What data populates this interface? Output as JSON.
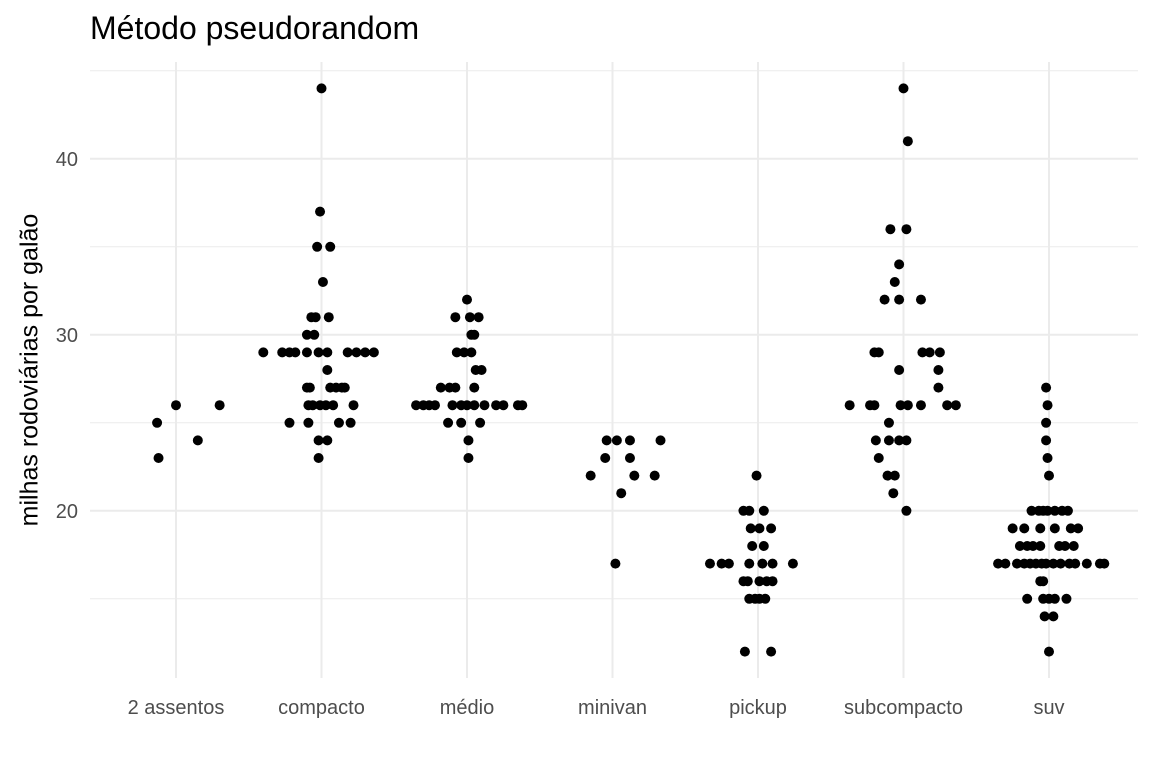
{
  "chart_data": {
    "type": "scatter",
    "title": "Método pseudorandom",
    "xlabel": "",
    "ylabel": "milhas rodoviárias por galão",
    "categories": [
      "2 assentos",
      "compacto",
      "médio",
      "minivan",
      "pickup",
      "subcompacto",
      "suv"
    ],
    "yticks": [
      20,
      30,
      40
    ],
    "ylim": [
      10.5,
      45.5
    ],
    "grid": true,
    "legend": "none",
    "point_color": "#000000",
    "grid_color": "#ebebeb",
    "points": [
      {
        "category": "2 assentos",
        "jitter": -0.13,
        "y": 25
      },
      {
        "category": "2 assentos",
        "jitter": -0.12,
        "y": 23
      },
      {
        "category": "2 assentos",
        "jitter": 0.0,
        "y": 26
      },
      {
        "category": "2 assentos",
        "jitter": 0.15,
        "y": 24
      },
      {
        "category": "2 assentos",
        "jitter": 0.3,
        "y": 26
      },
      {
        "category": "compacto",
        "jitter": -0.4,
        "y": 29
      },
      {
        "category": "compacto",
        "jitter": -0.27,
        "y": 29
      },
      {
        "category": "compacto",
        "jitter": -0.22,
        "y": 29
      },
      {
        "category": "compacto",
        "jitter": -0.18,
        "y": 29
      },
      {
        "category": "compacto",
        "jitter": -0.1,
        "y": 29
      },
      {
        "category": "compacto",
        "jitter": -0.02,
        "y": 29
      },
      {
        "category": "compacto",
        "jitter": 0.04,
        "y": 29
      },
      {
        "category": "compacto",
        "jitter": 0.18,
        "y": 29
      },
      {
        "category": "compacto",
        "jitter": 0.24,
        "y": 29
      },
      {
        "category": "compacto",
        "jitter": 0.3,
        "y": 29
      },
      {
        "category": "compacto",
        "jitter": 0.36,
        "y": 29
      },
      {
        "category": "compacto",
        "jitter": 0.0,
        "y": 44
      },
      {
        "category": "compacto",
        "jitter": -0.01,
        "y": 37
      },
      {
        "category": "compacto",
        "jitter": -0.03,
        "y": 35
      },
      {
        "category": "compacto",
        "jitter": 0.06,
        "y": 35
      },
      {
        "category": "compacto",
        "jitter": 0.01,
        "y": 33
      },
      {
        "category": "compacto",
        "jitter": -0.07,
        "y": 31
      },
      {
        "category": "compacto",
        "jitter": -0.04,
        "y": 31
      },
      {
        "category": "compacto",
        "jitter": 0.05,
        "y": 31
      },
      {
        "category": "compacto",
        "jitter": -0.1,
        "y": 30
      },
      {
        "category": "compacto",
        "jitter": -0.05,
        "y": 30
      },
      {
        "category": "compacto",
        "jitter": 0.04,
        "y": 28
      },
      {
        "category": "compacto",
        "jitter": -0.1,
        "y": 27
      },
      {
        "category": "compacto",
        "jitter": -0.08,
        "y": 27
      },
      {
        "category": "compacto",
        "jitter": 0.06,
        "y": 27
      },
      {
        "category": "compacto",
        "jitter": 0.1,
        "y": 27
      },
      {
        "category": "compacto",
        "jitter": 0.14,
        "y": 27
      },
      {
        "category": "compacto",
        "jitter": 0.16,
        "y": 27
      },
      {
        "category": "compacto",
        "jitter": -0.09,
        "y": 26
      },
      {
        "category": "compacto",
        "jitter": -0.06,
        "y": 26
      },
      {
        "category": "compacto",
        "jitter": -0.01,
        "y": 26
      },
      {
        "category": "compacto",
        "jitter": 0.03,
        "y": 26
      },
      {
        "category": "compacto",
        "jitter": 0.08,
        "y": 26
      },
      {
        "category": "compacto",
        "jitter": 0.22,
        "y": 26
      },
      {
        "category": "compacto",
        "jitter": -0.22,
        "y": 25
      },
      {
        "category": "compacto",
        "jitter": -0.09,
        "y": 25
      },
      {
        "category": "compacto",
        "jitter": 0.12,
        "y": 25
      },
      {
        "category": "compacto",
        "jitter": 0.2,
        "y": 25
      },
      {
        "category": "compacto",
        "jitter": -0.02,
        "y": 24
      },
      {
        "category": "compacto",
        "jitter": 0.04,
        "y": 24
      },
      {
        "category": "compacto",
        "jitter": -0.02,
        "y": 23
      },
      {
        "category": "médio",
        "jitter": -0.35,
        "y": 26
      },
      {
        "category": "médio",
        "jitter": -0.3,
        "y": 26
      },
      {
        "category": "médio",
        "jitter": -0.26,
        "y": 26
      },
      {
        "category": "médio",
        "jitter": -0.22,
        "y": 26
      },
      {
        "category": "médio",
        "jitter": -0.1,
        "y": 26
      },
      {
        "category": "médio",
        "jitter": -0.04,
        "y": 26
      },
      {
        "category": "médio",
        "jitter": 0.0,
        "y": 26
      },
      {
        "category": "médio",
        "jitter": 0.05,
        "y": 26
      },
      {
        "category": "médio",
        "jitter": 0.12,
        "y": 26
      },
      {
        "category": "médio",
        "jitter": 0.2,
        "y": 26
      },
      {
        "category": "médio",
        "jitter": 0.25,
        "y": 26
      },
      {
        "category": "médio",
        "jitter": 0.35,
        "y": 26
      },
      {
        "category": "médio",
        "jitter": 0.38,
        "y": 26
      },
      {
        "category": "médio",
        "jitter": 0.0,
        "y": 32
      },
      {
        "category": "médio",
        "jitter": -0.08,
        "y": 31
      },
      {
        "category": "médio",
        "jitter": 0.02,
        "y": 31
      },
      {
        "category": "médio",
        "jitter": 0.08,
        "y": 31
      },
      {
        "category": "médio",
        "jitter": 0.03,
        "y": 30
      },
      {
        "category": "médio",
        "jitter": 0.05,
        "y": 30
      },
      {
        "category": "médio",
        "jitter": -0.07,
        "y": 29
      },
      {
        "category": "médio",
        "jitter": -0.02,
        "y": 29
      },
      {
        "category": "médio",
        "jitter": 0.03,
        "y": 29
      },
      {
        "category": "médio",
        "jitter": 0.06,
        "y": 28
      },
      {
        "category": "médio",
        "jitter": 0.1,
        "y": 28
      },
      {
        "category": "médio",
        "jitter": -0.18,
        "y": 27
      },
      {
        "category": "médio",
        "jitter": -0.12,
        "y": 27
      },
      {
        "category": "médio",
        "jitter": -0.08,
        "y": 27
      },
      {
        "category": "médio",
        "jitter": 0.05,
        "y": 27
      },
      {
        "category": "médio",
        "jitter": -0.13,
        "y": 25
      },
      {
        "category": "médio",
        "jitter": -0.04,
        "y": 25
      },
      {
        "category": "médio",
        "jitter": 0.09,
        "y": 25
      },
      {
        "category": "médio",
        "jitter": 0.01,
        "y": 24
      },
      {
        "category": "médio",
        "jitter": 0.01,
        "y": 23
      },
      {
        "category": "minivan",
        "jitter": -0.15,
        "y": 22
      },
      {
        "category": "minivan",
        "jitter": -0.05,
        "y": 23
      },
      {
        "category": "minivan",
        "jitter": -0.04,
        "y": 24
      },
      {
        "category": "minivan",
        "jitter": 0.03,
        "y": 24
      },
      {
        "category": "minivan",
        "jitter": 0.12,
        "y": 24
      },
      {
        "category": "minivan",
        "jitter": 0.33,
        "y": 24
      },
      {
        "category": "minivan",
        "jitter": 0.12,
        "y": 23
      },
      {
        "category": "minivan",
        "jitter": 0.15,
        "y": 22
      },
      {
        "category": "minivan",
        "jitter": 0.29,
        "y": 22
      },
      {
        "category": "minivan",
        "jitter": 0.06,
        "y": 21
      },
      {
        "category": "minivan",
        "jitter": 0.02,
        "y": 17
      },
      {
        "category": "pickup",
        "jitter": -0.33,
        "y": 17
      },
      {
        "category": "pickup",
        "jitter": -0.25,
        "y": 17
      },
      {
        "category": "pickup",
        "jitter": -0.2,
        "y": 17
      },
      {
        "category": "pickup",
        "jitter": -0.06,
        "y": 17
      },
      {
        "category": "pickup",
        "jitter": 0.03,
        "y": 17
      },
      {
        "category": "pickup",
        "jitter": 0.1,
        "y": 17
      },
      {
        "category": "pickup",
        "jitter": 0.24,
        "y": 17
      },
      {
        "category": "pickup",
        "jitter": -0.1,
        "y": 20
      },
      {
        "category": "pickup",
        "jitter": -0.06,
        "y": 20
      },
      {
        "category": "pickup",
        "jitter": 0.04,
        "y": 20
      },
      {
        "category": "pickup",
        "jitter": -0.05,
        "y": 19
      },
      {
        "category": "pickup",
        "jitter": 0.01,
        "y": 19
      },
      {
        "category": "pickup",
        "jitter": 0.09,
        "y": 19
      },
      {
        "category": "pickup",
        "jitter": -0.04,
        "y": 18
      },
      {
        "category": "pickup",
        "jitter": 0.04,
        "y": 18
      },
      {
        "category": "pickup",
        "jitter": -0.1,
        "y": 16
      },
      {
        "category": "pickup",
        "jitter": -0.07,
        "y": 16
      },
      {
        "category": "pickup",
        "jitter": 0.01,
        "y": 16
      },
      {
        "category": "pickup",
        "jitter": 0.06,
        "y": 16
      },
      {
        "category": "pickup",
        "jitter": 0.1,
        "y": 16
      },
      {
        "category": "pickup",
        "jitter": -0.06,
        "y": 15
      },
      {
        "category": "pickup",
        "jitter": -0.02,
        "y": 15
      },
      {
        "category": "pickup",
        "jitter": 0.01,
        "y": 15
      },
      {
        "category": "pickup",
        "jitter": 0.05,
        "y": 15
      },
      {
        "category": "pickup",
        "jitter": -0.01,
        "y": 22
      },
      {
        "category": "pickup",
        "jitter": -0.09,
        "y": 12
      },
      {
        "category": "pickup",
        "jitter": 0.09,
        "y": 12
      },
      {
        "category": "subcompacto",
        "jitter": 0.0,
        "y": 44
      },
      {
        "category": "subcompacto",
        "jitter": 0.03,
        "y": 41
      },
      {
        "category": "subcompacto",
        "jitter": -0.09,
        "y": 36
      },
      {
        "category": "subcompacto",
        "jitter": 0.02,
        "y": 36
      },
      {
        "category": "subcompacto",
        "jitter": -0.03,
        "y": 34
      },
      {
        "category": "subcompacto",
        "jitter": -0.06,
        "y": 33
      },
      {
        "category": "subcompacto",
        "jitter": -0.13,
        "y": 32
      },
      {
        "category": "subcompacto",
        "jitter": -0.03,
        "y": 32
      },
      {
        "category": "subcompacto",
        "jitter": 0.12,
        "y": 32
      },
      {
        "category": "subcompacto",
        "jitter": -0.2,
        "y": 29
      },
      {
        "category": "subcompacto",
        "jitter": -0.17,
        "y": 29
      },
      {
        "category": "subcompacto",
        "jitter": 0.13,
        "y": 29
      },
      {
        "category": "subcompacto",
        "jitter": 0.18,
        "y": 29
      },
      {
        "category": "subcompacto",
        "jitter": 0.25,
        "y": 29
      },
      {
        "category": "subcompacto",
        "jitter": -0.03,
        "y": 28
      },
      {
        "category": "subcompacto",
        "jitter": 0.24,
        "y": 28
      },
      {
        "category": "subcompacto",
        "jitter": 0.24,
        "y": 27
      },
      {
        "category": "subcompacto",
        "jitter": -0.37,
        "y": 26
      },
      {
        "category": "subcompacto",
        "jitter": -0.23,
        "y": 26
      },
      {
        "category": "subcompacto",
        "jitter": -0.2,
        "y": 26
      },
      {
        "category": "subcompacto",
        "jitter": -0.02,
        "y": 26
      },
      {
        "category": "subcompacto",
        "jitter": 0.03,
        "y": 26
      },
      {
        "category": "subcompacto",
        "jitter": 0.12,
        "y": 26
      },
      {
        "category": "subcompacto",
        "jitter": 0.3,
        "y": 26
      },
      {
        "category": "subcompacto",
        "jitter": 0.36,
        "y": 26
      },
      {
        "category": "subcompacto",
        "jitter": -0.1,
        "y": 25
      },
      {
        "category": "subcompacto",
        "jitter": -0.19,
        "y": 24
      },
      {
        "category": "subcompacto",
        "jitter": -0.1,
        "y": 24
      },
      {
        "category": "subcompacto",
        "jitter": -0.03,
        "y": 24
      },
      {
        "category": "subcompacto",
        "jitter": 0.02,
        "y": 24
      },
      {
        "category": "subcompacto",
        "jitter": -0.17,
        "y": 23
      },
      {
        "category": "subcompacto",
        "jitter": -0.11,
        "y": 22
      },
      {
        "category": "subcompacto",
        "jitter": -0.06,
        "y": 22
      },
      {
        "category": "subcompacto",
        "jitter": -0.07,
        "y": 21
      },
      {
        "category": "subcompacto",
        "jitter": 0.02,
        "y": 20
      },
      {
        "category": "suv",
        "jitter": -0.35,
        "y": 17
      },
      {
        "category": "suv",
        "jitter": -0.3,
        "y": 17
      },
      {
        "category": "suv",
        "jitter": -0.22,
        "y": 17
      },
      {
        "category": "suv",
        "jitter": -0.17,
        "y": 17
      },
      {
        "category": "suv",
        "jitter": -0.13,
        "y": 17
      },
      {
        "category": "suv",
        "jitter": -0.09,
        "y": 17
      },
      {
        "category": "suv",
        "jitter": -0.05,
        "y": 17
      },
      {
        "category": "suv",
        "jitter": -0.02,
        "y": 17
      },
      {
        "category": "suv",
        "jitter": 0.03,
        "y": 17
      },
      {
        "category": "suv",
        "jitter": 0.08,
        "y": 17
      },
      {
        "category": "suv",
        "jitter": 0.14,
        "y": 17
      },
      {
        "category": "suv",
        "jitter": 0.18,
        "y": 17
      },
      {
        "category": "suv",
        "jitter": 0.26,
        "y": 17
      },
      {
        "category": "suv",
        "jitter": 0.35,
        "y": 17
      },
      {
        "category": "suv",
        "jitter": 0.38,
        "y": 17
      },
      {
        "category": "suv",
        "jitter": -0.02,
        "y": 27
      },
      {
        "category": "suv",
        "jitter": -0.01,
        "y": 26
      },
      {
        "category": "suv",
        "jitter": -0.02,
        "y": 25
      },
      {
        "category": "suv",
        "jitter": -0.02,
        "y": 24
      },
      {
        "category": "suv",
        "jitter": -0.01,
        "y": 23
      },
      {
        "category": "suv",
        "jitter": 0.0,
        "y": 22
      },
      {
        "category": "suv",
        "jitter": -0.12,
        "y": 20
      },
      {
        "category": "suv",
        "jitter": -0.07,
        "y": 20
      },
      {
        "category": "suv",
        "jitter": -0.04,
        "y": 20
      },
      {
        "category": "suv",
        "jitter": -0.01,
        "y": 20
      },
      {
        "category": "suv",
        "jitter": 0.04,
        "y": 20
      },
      {
        "category": "suv",
        "jitter": 0.09,
        "y": 20
      },
      {
        "category": "suv",
        "jitter": 0.13,
        "y": 20
      },
      {
        "category": "suv",
        "jitter": -0.25,
        "y": 19
      },
      {
        "category": "suv",
        "jitter": -0.17,
        "y": 19
      },
      {
        "category": "suv",
        "jitter": -0.06,
        "y": 19
      },
      {
        "category": "suv",
        "jitter": 0.04,
        "y": 19
      },
      {
        "category": "suv",
        "jitter": 0.15,
        "y": 19
      },
      {
        "category": "suv",
        "jitter": 0.2,
        "y": 19
      },
      {
        "category": "suv",
        "jitter": -0.2,
        "y": 18
      },
      {
        "category": "suv",
        "jitter": -0.15,
        "y": 18
      },
      {
        "category": "suv",
        "jitter": -0.11,
        "y": 18
      },
      {
        "category": "suv",
        "jitter": -0.06,
        "y": 18
      },
      {
        "category": "suv",
        "jitter": 0.07,
        "y": 18
      },
      {
        "category": "suv",
        "jitter": 0.11,
        "y": 18
      },
      {
        "category": "suv",
        "jitter": 0.17,
        "y": 18
      },
      {
        "category": "suv",
        "jitter": -0.06,
        "y": 16
      },
      {
        "category": "suv",
        "jitter": -0.04,
        "y": 16
      },
      {
        "category": "suv",
        "jitter": -0.15,
        "y": 15
      },
      {
        "category": "suv",
        "jitter": -0.04,
        "y": 15
      },
      {
        "category": "suv",
        "jitter": 0.0,
        "y": 15
      },
      {
        "category": "suv",
        "jitter": 0.04,
        "y": 15
      },
      {
        "category": "suv",
        "jitter": 0.12,
        "y": 15
      },
      {
        "category": "suv",
        "jitter": -0.03,
        "y": 14
      },
      {
        "category": "suv",
        "jitter": 0.03,
        "y": 14
      },
      {
        "category": "suv",
        "jitter": 0.0,
        "y": 12
      }
    ]
  }
}
